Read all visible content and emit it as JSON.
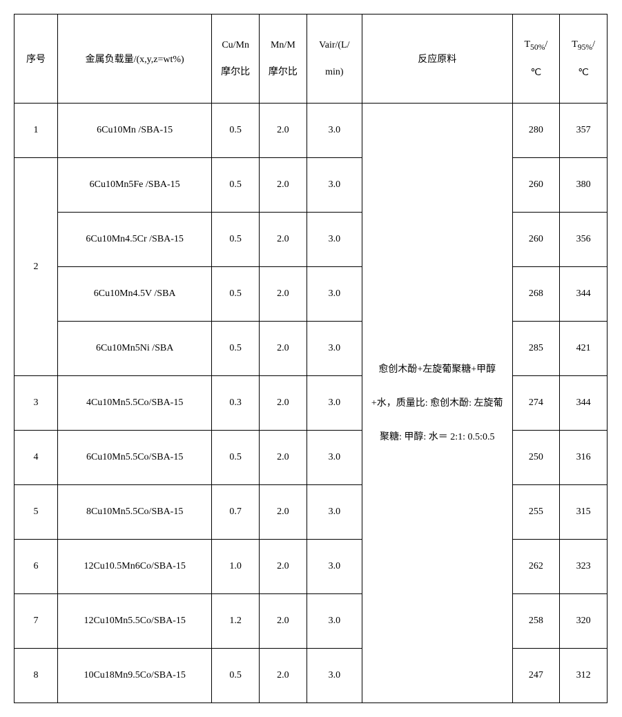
{
  "headers": {
    "seq": "序号",
    "load": "金属负载量/(x,y,z=wt%)",
    "cumn_top": "Cu/Mn",
    "cumn_bot": "摩尔比",
    "mnm_top": "Mn/M",
    "mnm_bot": "摩尔比",
    "vair_top": "Vair/(L/",
    "vair_bot": "min)",
    "material": "反应原料",
    "t50_top": "T",
    "t50_sub": "50%",
    "t50_suffix": "/",
    "t50_bot": "℃",
    "t95_top": "T",
    "t95_sub": "95%",
    "t95_suffix": "/",
    "t95_bot": "℃"
  },
  "material_text": "愈创木酚+左旋葡聚糖+甲醇+水，质量比: 愈创木酚: 左旋葡聚糖: 甲醇: 水＝ 2:1: 0.5:0.5",
  "rows": [
    {
      "seq": "1",
      "load": "6Cu10Mn /SBA-15",
      "cumn": "0.5",
      "mnm": "2.0",
      "vair": "3.0",
      "t50": "280",
      "t95": "357"
    },
    {
      "seq": "2",
      "load": "6Cu10Mn5Fe /SBA-15",
      "cumn": "0.5",
      "mnm": "2.0",
      "vair": "3.0",
      "t50": "260",
      "t95": "380"
    },
    {
      "seq": "",
      "load": "6Cu10Mn4.5Cr /SBA-15",
      "cumn": "0.5",
      "mnm": "2.0",
      "vair": "3.0",
      "t50": "260",
      "t95": "356"
    },
    {
      "seq": "",
      "load": "6Cu10Mn4.5V /SBA",
      "cumn": "0.5",
      "mnm": "2.0",
      "vair": "3.0",
      "t50": "268",
      "t95": "344"
    },
    {
      "seq": "",
      "load": "6Cu10Mn5Ni /SBA",
      "cumn": "0.5",
      "mnm": "2.0",
      "vair": "3.0",
      "t50": "285",
      "t95": "421"
    },
    {
      "seq": "3",
      "load": "4Cu10Mn5.5Co/SBA-15",
      "cumn": "0.3",
      "mnm": "2.0",
      "vair": "3.0",
      "t50": "274",
      "t95": "344"
    },
    {
      "seq": "4",
      "load": "6Cu10Mn5.5Co/SBA-15",
      "cumn": "0.5",
      "mnm": "2.0",
      "vair": "3.0",
      "t50": "250",
      "t95": "316"
    },
    {
      "seq": "5",
      "load": "8Cu10Mn5.5Co/SBA-15",
      "cumn": "0.7",
      "mnm": "2.0",
      "vair": "3.0",
      "t50": "255",
      "t95": "315"
    },
    {
      "seq": "6",
      "load": "12Cu10.5Mn6Co/SBA-15",
      "cumn": "1.0",
      "mnm": "2.0",
      "vair": "3.0",
      "t50": "262",
      "t95": "323"
    },
    {
      "seq": "7",
      "load": "12Cu10Mn5.5Co/SBA-15",
      "cumn": "1.2",
      "mnm": "2.0",
      "vair": "3.0",
      "t50": "258",
      "t95": "320"
    },
    {
      "seq": "8",
      "load": "10Cu18Mn9.5Co/SBA-15",
      "cumn": "0.5",
      "mnm": "2.0",
      "vair": "3.0",
      "t50": "247",
      "t95": "312"
    }
  ]
}
